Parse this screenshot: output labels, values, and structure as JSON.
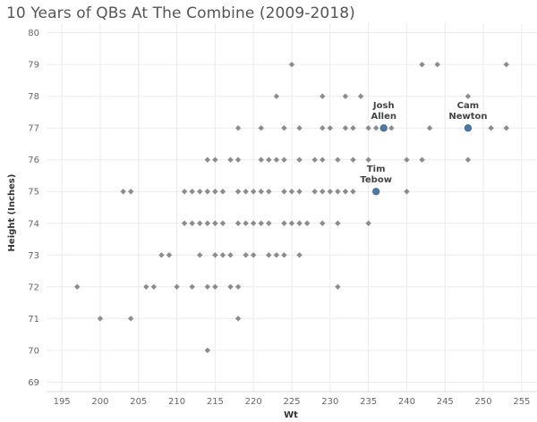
{
  "chart_data": {
    "type": "scatter",
    "title": "10 Years of QBs At The Combine (2009-2018)",
    "xlabel": "Wt",
    "ylabel": "Height (Inches)",
    "xlim": [
      193,
      257
    ],
    "ylim": [
      68.7,
      80.3
    ],
    "xticks": [
      195,
      200,
      205,
      210,
      215,
      220,
      225,
      230,
      235,
      240,
      245,
      250,
      255
    ],
    "yticks": [
      69,
      70,
      71,
      72,
      73,
      74,
      75,
      76,
      77,
      78,
      79,
      80
    ],
    "grid": true,
    "colors": {
      "points": "#8c8c8c",
      "highlight": "#4e79a7"
    },
    "points": [
      [
        225,
        79
      ],
      [
        242,
        79
      ],
      [
        244,
        79
      ],
      [
        253,
        79
      ],
      [
        223,
        78
      ],
      [
        229,
        78
      ],
      [
        232,
        78
      ],
      [
        234,
        78
      ],
      [
        248,
        78
      ],
      [
        218,
        77
      ],
      [
        221,
        77
      ],
      [
        224,
        77
      ],
      [
        226,
        77
      ],
      [
        229,
        77
      ],
      [
        230,
        77
      ],
      [
        232,
        77
      ],
      [
        233,
        77
      ],
      [
        235,
        77
      ],
      [
        236,
        77
      ],
      [
        238,
        77
      ],
      [
        243,
        77
      ],
      [
        251,
        77
      ],
      [
        253,
        77
      ],
      [
        214,
        76
      ],
      [
        215,
        76
      ],
      [
        217,
        76
      ],
      [
        218,
        76
      ],
      [
        221,
        76
      ],
      [
        222,
        76
      ],
      [
        223,
        76
      ],
      [
        224,
        76
      ],
      [
        226,
        76
      ],
      [
        228,
        76
      ],
      [
        229,
        76
      ],
      [
        231,
        76
      ],
      [
        233,
        76
      ],
      [
        235,
        76
      ],
      [
        240,
        76
      ],
      [
        242,
        76
      ],
      [
        248,
        76
      ],
      [
        203,
        75
      ],
      [
        204,
        75
      ],
      [
        211,
        75
      ],
      [
        212,
        75
      ],
      [
        213,
        75
      ],
      [
        214,
        75
      ],
      [
        215,
        75
      ],
      [
        216,
        75
      ],
      [
        218,
        75
      ],
      [
        219,
        75
      ],
      [
        220,
        75
      ],
      [
        221,
        75
      ],
      [
        222,
        75
      ],
      [
        224,
        75
      ],
      [
        225,
        75
      ],
      [
        226,
        75
      ],
      [
        228,
        75
      ],
      [
        229,
        75
      ],
      [
        230,
        75
      ],
      [
        231,
        75
      ],
      [
        232,
        75
      ],
      [
        233,
        75
      ],
      [
        240,
        75
      ],
      [
        211,
        74
      ],
      [
        212,
        74
      ],
      [
        213,
        74
      ],
      [
        214,
        74
      ],
      [
        215,
        74
      ],
      [
        216,
        74
      ],
      [
        218,
        74
      ],
      [
        219,
        74
      ],
      [
        220,
        74
      ],
      [
        221,
        74
      ],
      [
        222,
        74
      ],
      [
        224,
        74
      ],
      [
        225,
        74
      ],
      [
        226,
        74
      ],
      [
        227,
        74
      ],
      [
        229,
        74
      ],
      [
        231,
        74
      ],
      [
        235,
        74
      ],
      [
        208,
        73
      ],
      [
        209,
        73
      ],
      [
        213,
        73
      ],
      [
        215,
        73
      ],
      [
        216,
        73
      ],
      [
        217,
        73
      ],
      [
        219,
        73
      ],
      [
        220,
        73
      ],
      [
        222,
        73
      ],
      [
        223,
        73
      ],
      [
        224,
        73
      ],
      [
        226,
        73
      ],
      [
        197,
        72
      ],
      [
        206,
        72
      ],
      [
        207,
        72
      ],
      [
        210,
        72
      ],
      [
        212,
        72
      ],
      [
        214,
        72
      ],
      [
        215,
        72
      ],
      [
        217,
        72
      ],
      [
        218,
        72
      ],
      [
        231,
        72
      ],
      [
        200,
        71
      ],
      [
        204,
        71
      ],
      [
        218,
        71
      ],
      [
        214,
        70
      ]
    ],
    "highlights": [
      {
        "name": "Josh Allen",
        "label_lines": [
          "Josh",
          "Allen"
        ],
        "x": 237,
        "y": 77
      },
      {
        "name": "Cam Newton",
        "label_lines": [
          "Cam",
          "Newton"
        ],
        "x": 248,
        "y": 77
      },
      {
        "name": "Tim Tebow",
        "label_lines": [
          "Tim",
          "Tebow"
        ],
        "x": 236,
        "y": 75
      }
    ]
  }
}
